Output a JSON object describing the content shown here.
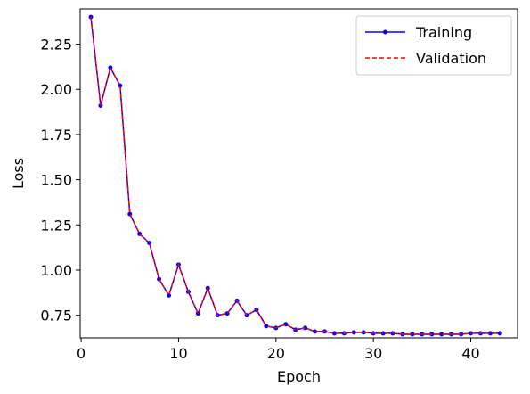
{
  "chart_data": {
    "type": "line",
    "title": "",
    "xlabel": "Epoch",
    "ylabel": "Loss",
    "xlim": [
      -0.1,
      44.8
    ],
    "ylim": [
      0.625,
      2.445
    ],
    "xticks": [
      0,
      10,
      20,
      30,
      40
    ],
    "yticks": [
      0.75,
      1.0,
      1.25,
      1.5,
      1.75,
      2.0,
      2.25
    ],
    "ytick_labels": [
      "0.75",
      "1.00",
      "1.25",
      "1.50",
      "1.75",
      "2.00",
      "2.25"
    ],
    "grid": false,
    "legend_position": "top-right",
    "x": [
      1,
      2,
      3,
      4,
      5,
      6,
      7,
      8,
      9,
      10,
      11,
      12,
      13,
      14,
      15,
      16,
      17,
      18,
      19,
      20,
      21,
      22,
      23,
      24,
      25,
      26,
      27,
      28,
      29,
      30,
      31,
      32,
      33,
      34,
      35,
      36,
      37,
      38,
      39,
      40,
      41,
      42,
      43
    ],
    "series": [
      {
        "name": "Training",
        "color": "#0000ff",
        "style": "solid-marker",
        "values": [
          2.4,
          1.91,
          2.12,
          2.02,
          1.31,
          1.2,
          1.15,
          0.95,
          0.86,
          1.03,
          0.88,
          0.76,
          0.9,
          0.75,
          0.76,
          0.83,
          0.75,
          0.78,
          0.69,
          0.68,
          0.7,
          0.67,
          0.68,
          0.66,
          0.66,
          0.65,
          0.65,
          0.655,
          0.655,
          0.65,
          0.65,
          0.65,
          0.645,
          0.645,
          0.645,
          0.645,
          0.645,
          0.645,
          0.645,
          0.65,
          0.65,
          0.65,
          0.65
        ]
      },
      {
        "name": "Validation",
        "color": "#ff0000",
        "style": "dashed",
        "values": [
          2.4,
          1.91,
          2.12,
          2.02,
          1.31,
          1.2,
          1.15,
          0.95,
          0.86,
          1.03,
          0.88,
          0.76,
          0.9,
          0.75,
          0.76,
          0.83,
          0.75,
          0.78,
          0.69,
          0.68,
          0.7,
          0.67,
          0.68,
          0.66,
          0.66,
          0.65,
          0.65,
          0.655,
          0.655,
          0.65,
          0.65,
          0.65,
          0.645,
          0.645,
          0.645,
          0.645,
          0.645,
          0.645,
          0.645,
          0.65,
          0.65,
          0.65,
          0.65
        ]
      }
    ]
  }
}
